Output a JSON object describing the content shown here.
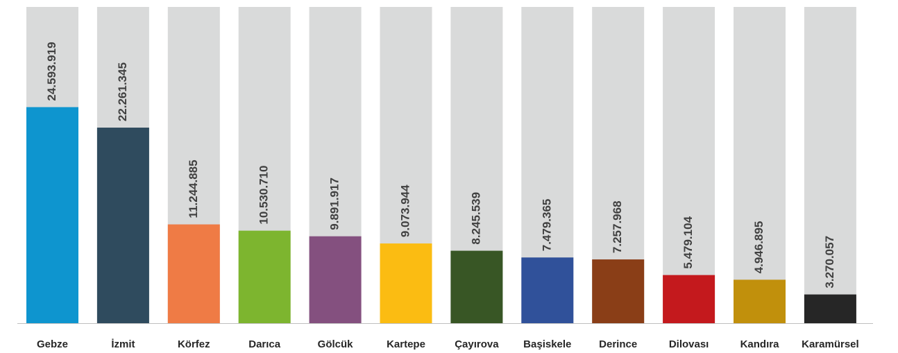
{
  "chart_data": {
    "type": "bar",
    "categories": [
      "Gebze",
      "İzmit",
      "Körfez",
      "Darıca",
      "Gölcük",
      "Kartepe",
      "Çayırova",
      "Başiskele",
      "Derince",
      "Dilovası",
      "Kandıra",
      "Karamürsel"
    ],
    "values": [
      24593919,
      22261345,
      11244885,
      10530710,
      9891917,
      9073944,
      8245539,
      7479365,
      7257968,
      5479104,
      4946895,
      3270057
    ],
    "value_labels": [
      "24.593.919",
      "22.261.345",
      "11.244.885",
      "10.530.710",
      "9.891.917",
      "9.073.944",
      "8.245.539",
      "7.479.365",
      "7.257.968",
      "5.479.104",
      "4.946.895",
      "3.270.057"
    ],
    "colors": [
      "#0e95cf",
      "#2f4b5e",
      "#ef7b45",
      "#7db52f",
      "#84507f",
      "#fbbc12",
      "#385625",
      "#30519a",
      "#8a3e17",
      "#c4191d",
      "#c1900c",
      "#262626"
    ],
    "ylim": [
      0,
      36000000
    ]
  }
}
